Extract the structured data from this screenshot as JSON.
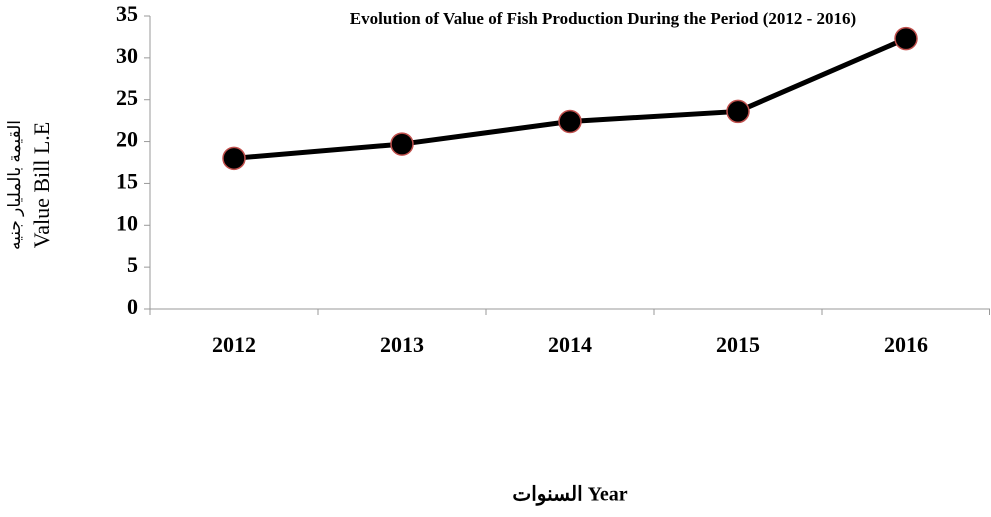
{
  "chart_data": {
    "type": "line",
    "title": "Evolution of  Value of  Fish Production  During the Period (2012 - 2016)",
    "ylabel": [
      "القيمة بالمليار جنيه",
      "Value Bill L.E"
    ],
    "xlabel": "السنوات Year",
    "categories": [
      "2012",
      "2013",
      "2014",
      "2015",
      "2016"
    ],
    "series": [
      {
        "color": "#000000",
        "marker_color": "#000000",
        "marker_edge": "#c0504d",
        "values": [
          18,
          19.7,
          22.4,
          23.6,
          32.3
        ]
      }
    ],
    "ylim": [
      0,
      35
    ],
    "yticks": [
      0,
      5,
      10,
      15,
      20,
      25,
      30,
      35
    ],
    "grid": false
  }
}
